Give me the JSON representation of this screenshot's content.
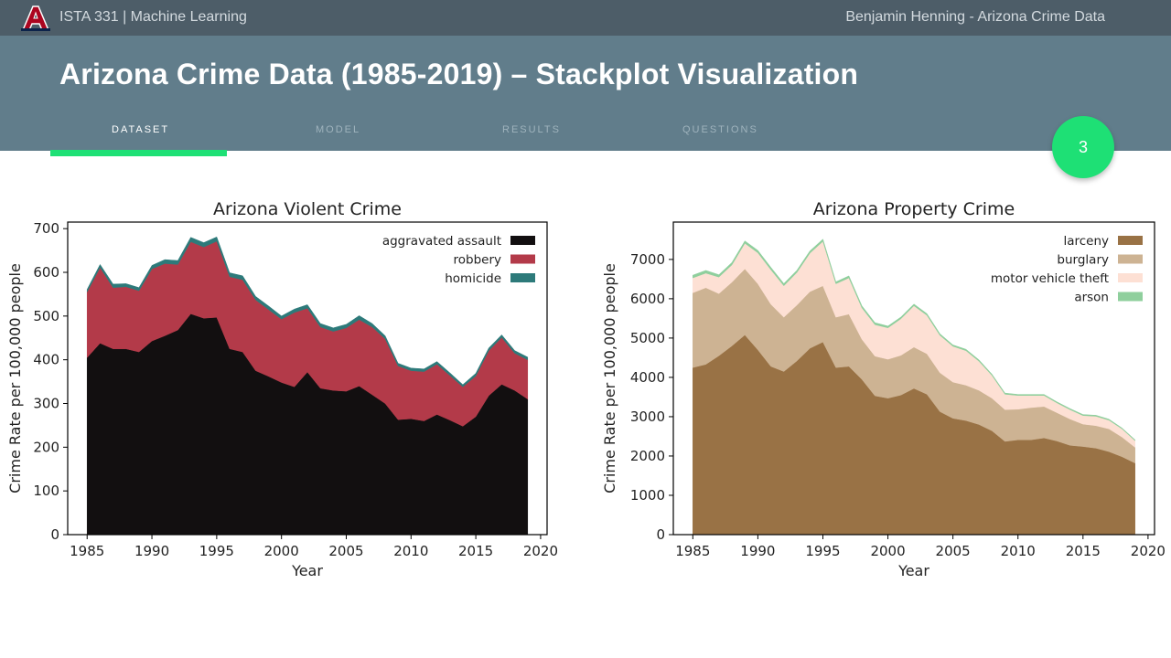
{
  "topbar": {
    "course": "ISTA 331 | Machine Learning",
    "author": "Benjamin Henning - Arizona Crime Data"
  },
  "header": {
    "title": "Arizona Crime Data (1985-2019) – Stackplot Visualization"
  },
  "tabs": [
    {
      "label": "DATASET",
      "active": true
    },
    {
      "label": "MODEL",
      "active": false
    },
    {
      "label": "RESULTS",
      "active": false
    },
    {
      "label": "QUESTIONS",
      "active": false
    }
  ],
  "page_number": "3",
  "colors": {
    "aggravated_assault": "#120f10",
    "robbery": "#b33a49",
    "homicide": "#2d7a7a",
    "larceny": "#997245",
    "burglary": "#cdb393",
    "motor_vehicle_theft": "#fde0d4",
    "arson": "#8fcf9d",
    "accent": "#1ee075"
  },
  "chart_data": [
    {
      "type": "area",
      "stacked": true,
      "title": "Arizona Violent Crime",
      "xlabel": "Year",
      "ylabel": "Crime Rate per 100,000 people",
      "xlim": [
        1983.5,
        2020.5
      ],
      "ylim": [
        0,
        715
      ],
      "xticks": [
        1985,
        1990,
        1995,
        2000,
        2005,
        2010,
        2015,
        2020
      ],
      "yticks": [
        0,
        100,
        200,
        300,
        400,
        500,
        600,
        700
      ],
      "legend": "top-right",
      "grid": false,
      "x": [
        1985,
        1986,
        1987,
        1988,
        1989,
        1990,
        1991,
        1992,
        1993,
        1994,
        1995,
        1996,
        1997,
        1998,
        1999,
        2000,
        2001,
        2002,
        2003,
        2004,
        2005,
        2006,
        2007,
        2008,
        2009,
        2010,
        2011,
        2012,
        2013,
        2014,
        2015,
        2016,
        2017,
        2018,
        2019
      ],
      "series": [
        {
          "name": "aggravated assault",
          "values": [
            405,
            438,
            425,
            425,
            418,
            443,
            455,
            468,
            505,
            495,
            497,
            425,
            418,
            375,
            362,
            348,
            338,
            372,
            335,
            330,
            328,
            340,
            320,
            300,
            263,
            265,
            260,
            275,
            262,
            248,
            270,
            318,
            344,
            330,
            310
          ]
        },
        {
          "name": "robbery",
          "values": [
            150,
            173,
            140,
            142,
            140,
            165,
            165,
            150,
            165,
            163,
            174,
            165,
            165,
            162,
            153,
            145,
            170,
            146,
            140,
            135,
            145,
            152,
            155,
            148,
            123,
            110,
            113,
            115,
            102,
            90,
            93,
            103,
            107,
            85,
            90
          ]
        },
        {
          "name": "homicide",
          "values": [
            6,
            7,
            8,
            7,
            7,
            8,
            9,
            9,
            10,
            10,
            10,
            9,
            9,
            8,
            8,
            7,
            8,
            8,
            8,
            8,
            8,
            9,
            8,
            7,
            6,
            6,
            6,
            6,
            6,
            5,
            6,
            6,
            6,
            6,
            6
          ]
        }
      ]
    },
    {
      "type": "area",
      "stacked": true,
      "title": "Arizona Property Crime",
      "xlabel": "Year",
      "ylabel": "Crime Rate per 100,000 people",
      "xlim": [
        1983.5,
        2020.5
      ],
      "ylim": [
        0,
        7950
      ],
      "xticks": [
        1985,
        1990,
        1995,
        2000,
        2005,
        2010,
        2015,
        2020
      ],
      "yticks": [
        0,
        1000,
        2000,
        3000,
        4000,
        5000,
        6000,
        7000
      ],
      "legend": "top-right",
      "grid": false,
      "x": [
        1985,
        1986,
        1987,
        1988,
        1989,
        1990,
        1991,
        1992,
        1993,
        1994,
        1995,
        1996,
        1997,
        1998,
        1999,
        2000,
        2001,
        2002,
        2003,
        2004,
        2005,
        2006,
        2007,
        2008,
        2009,
        2010,
        2011,
        2012,
        2013,
        2014,
        2015,
        2016,
        2017,
        2018,
        2019
      ],
      "series": [
        {
          "name": "larceny",
          "values": [
            4250,
            4330,
            4550,
            4800,
            5080,
            4700,
            4280,
            4150,
            4420,
            4740,
            4900,
            4250,
            4280,
            3950,
            3530,
            3470,
            3550,
            3720,
            3570,
            3130,
            2960,
            2900,
            2800,
            2640,
            2370,
            2410,
            2410,
            2460,
            2380,
            2270,
            2240,
            2200,
            2110,
            1980,
            1820
          ]
        },
        {
          "name": "burglary",
          "values": [
            1900,
            1950,
            1580,
            1620,
            1680,
            1680,
            1580,
            1380,
            1420,
            1440,
            1430,
            1280,
            1330,
            1020,
            1010,
            990,
            1010,
            1050,
            1030,
            990,
            920,
            900,
            870,
            830,
            810,
            780,
            820,
            800,
            720,
            670,
            570,
            570,
            580,
            500,
            400
          ]
        },
        {
          "name": "motor vehicle theft",
          "values": [
            380,
            370,
            420,
            440,
            650,
            790,
            880,
            800,
            830,
            980,
            1130,
            850,
            920,
            800,
            800,
            800,
            930,
            1050,
            980,
            950,
            910,
            880,
            740,
            580,
            390,
            350,
            310,
            280,
            250,
            240,
            220,
            240,
            220,
            210,
            170
          ]
        },
        {
          "name": "arson",
          "values": [
            70,
            70,
            60,
            60,
            60,
            60,
            60,
            55,
            55,
            55,
            55,
            50,
            50,
            50,
            50,
            45,
            45,
            45,
            40,
            40,
            35,
            35,
            35,
            30,
            30,
            25,
            25,
            25,
            25,
            25,
            25,
            25,
            25,
            20,
            20
          ]
        }
      ]
    }
  ]
}
